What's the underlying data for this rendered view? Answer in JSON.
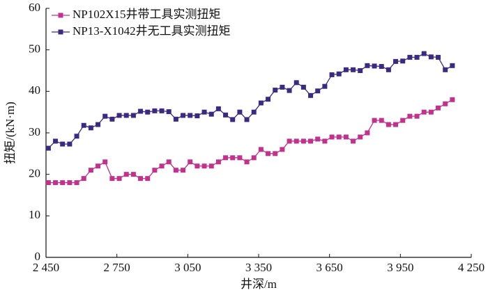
{
  "chart_data": {
    "type": "line",
    "x_label": "井深/m",
    "y_label": "扭矩/(kN·m)",
    "x": [
      2460,
      2490,
      2520,
      2550,
      2580,
      2610,
      2640,
      2670,
      2700,
      2730,
      2760,
      2790,
      2820,
      2850,
      2880,
      2910,
      2940,
      2970,
      3000,
      3030,
      3060,
      3090,
      3120,
      3150,
      3180,
      3210,
      3240,
      3270,
      3300,
      3330,
      3360,
      3390,
      3420,
      3450,
      3480,
      3510,
      3540,
      3570,
      3600,
      3630,
      3660,
      3690,
      3720,
      3750,
      3780,
      3810,
      3840,
      3870,
      3900,
      3930,
      3960,
      3990,
      4020,
      4050,
      4080,
      4110,
      4140,
      4170
    ],
    "series": [
      {
        "name": "NP102X15井带工具实测扭矩",
        "color": "#c2318c",
        "values": [
          18,
          18,
          18,
          18,
          18,
          19,
          21,
          22,
          23,
          19,
          19,
          20,
          20,
          19,
          19,
          21,
          22,
          23,
          21,
          21,
          23,
          22,
          22,
          22,
          23,
          24,
          24,
          24,
          23,
          24,
          26,
          25,
          25,
          26,
          28,
          28,
          28,
          28,
          28.5,
          28,
          29,
          29,
          29,
          28,
          29,
          30,
          33,
          33,
          32,
          32,
          33,
          34,
          34,
          35,
          35,
          36,
          37,
          38
        ]
      },
      {
        "name": "NP13-X1042井无工具实测扭矩",
        "color": "#3b2a82",
        "values": [
          26.3,
          28,
          27.3,
          27.3,
          29.2,
          31.8,
          31.2,
          32,
          34,
          33.3,
          34.2,
          34.2,
          34.2,
          35.2,
          35,
          35.3,
          35.3,
          35.1,
          33.3,
          34.2,
          34.2,
          34.1,
          35,
          34.5,
          35.8,
          34.3,
          33.2,
          35,
          33.2,
          35,
          37.2,
          38.1,
          40.3,
          41,
          40.2,
          42.1,
          41,
          39,
          40.1,
          41.2,
          44,
          44.2,
          45.2,
          45.2,
          45,
          46.2,
          46.1,
          46,
          45.2,
          47.2,
          47.3,
          48.2,
          48.2,
          49.1,
          48.3,
          48.2,
          45.2,
          46.2
        ]
      }
    ],
    "xlim": [
      2450,
      4250
    ],
    "xticks": [
      {
        "value": 2450,
        "label": "2 450"
      },
      {
        "value": 2750,
        "label": "2 750"
      },
      {
        "value": 3050,
        "label": "3 050"
      },
      {
        "value": 3350,
        "label": "3 350"
      },
      {
        "value": 3650,
        "label": "3 650"
      },
      {
        "value": 3950,
        "label": "3 950"
      },
      {
        "value": 4250,
        "label": "4 250"
      }
    ],
    "ylim": [
      0,
      60
    ],
    "yticks": [
      0,
      10,
      20,
      30,
      40,
      50,
      60
    ],
    "legend": "top-left"
  }
}
